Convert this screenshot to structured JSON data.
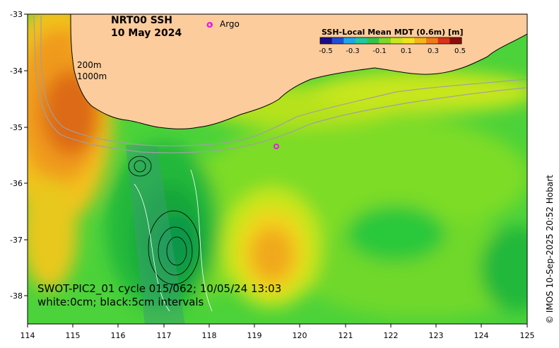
{
  "title": {
    "line1": "NRT00 SSH",
    "line2": "10 May 2024"
  },
  "legend": {
    "argo_symbol": "o",
    "argo_label": "Argo",
    "colorbar_title": "SSH-Local Mean MDT (0.6m) [m]",
    "colorbar_ticks": [
      "-0.5",
      "-0.3",
      "-0.1",
      "0.1",
      "0.3",
      "0.5"
    ],
    "colorbar_colors": [
      "#1a0d8a",
      "#1f4fd6",
      "#1fa6e8",
      "#20c8a0",
      "#34c34a",
      "#7fd62a",
      "#c8e61e",
      "#f2e21a",
      "#f5b51a",
      "#ef7a1a",
      "#d8321a",
      "#8a0d0d"
    ]
  },
  "isobaths": {
    "label1": "200m",
    "label2": "1000m"
  },
  "swot": {
    "line1": "SWOT-PIC2_01 cycle 015/062; 10/05/24 13:03",
    "line2": "white:0cm; black:5cm intervals"
  },
  "credit": "© IMOS 10-Sep-2025 20:52 Hobart",
  "chart_data": {
    "type": "heatmap",
    "x_ticks": [
      "114",
      "115",
      "116",
      "117",
      "118",
      "119",
      "120",
      "121",
      "122",
      "123",
      "124",
      "125"
    ],
    "y_ticks": [
      "-33",
      "-34",
      "-35",
      "-36",
      "-37",
      "-38"
    ],
    "xlim": [
      114,
      125
    ],
    "ylim": [
      -38.5,
      -33
    ],
    "colors": {
      "land": "#fccc9c",
      "coast": "#000000",
      "isobath": "#a0a0a0",
      "argo": "#e020e0"
    }
  }
}
